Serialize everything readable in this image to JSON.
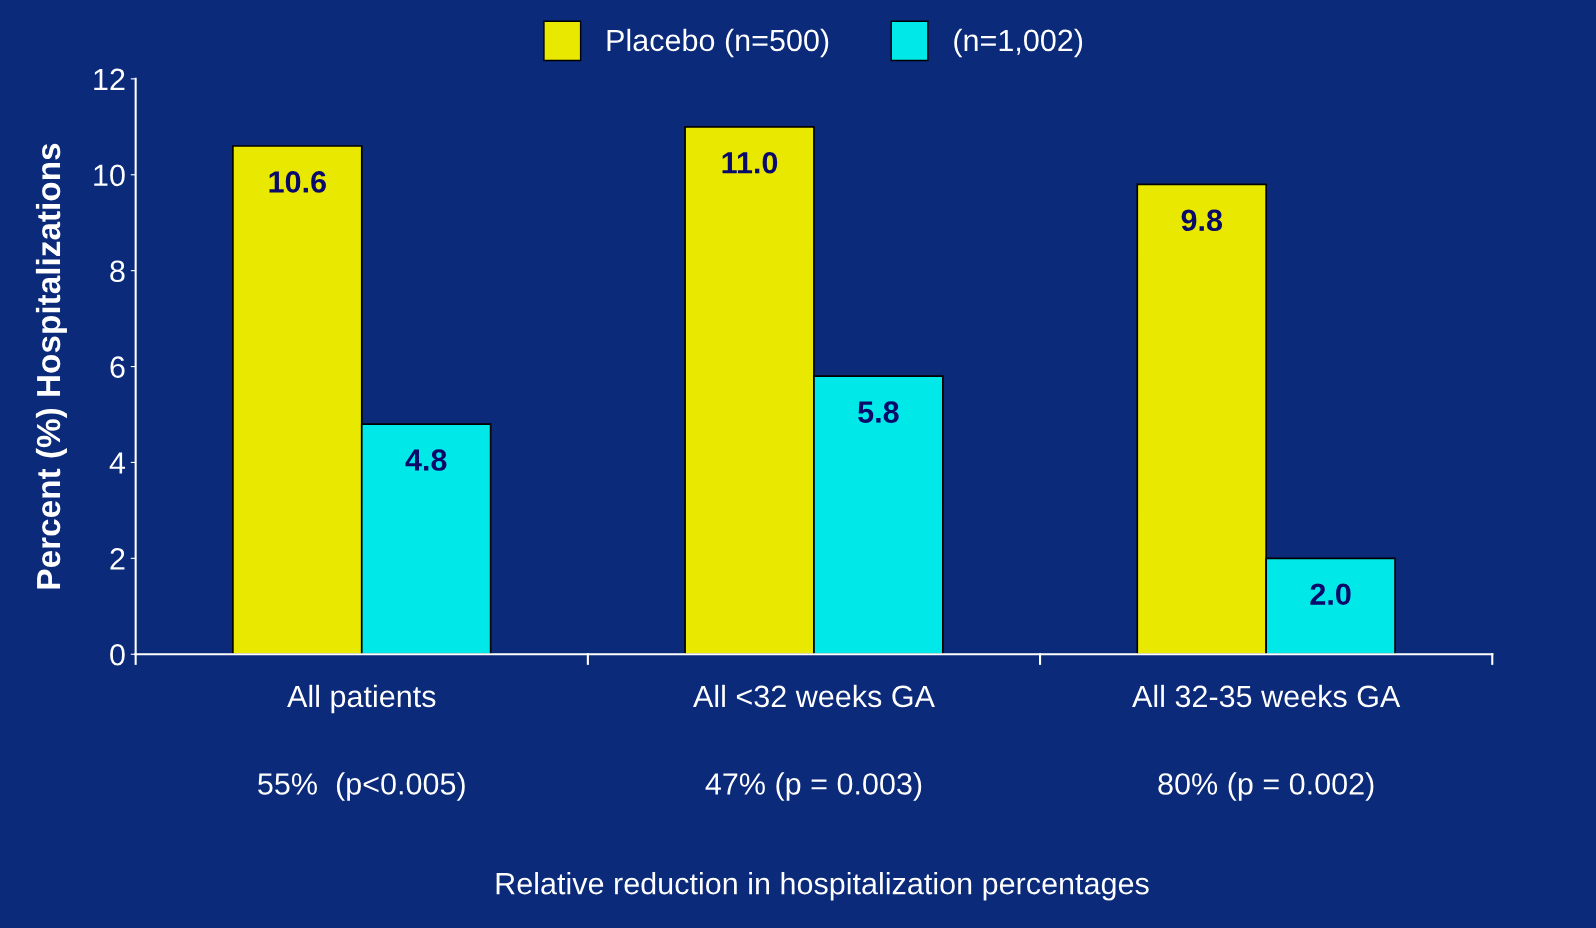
{
  "chart_data": {
    "type": "bar",
    "ylabel": "Percent (%) Hospitalizations",
    "categories": [
      "All patients",
      "All <32 weeks GA",
      "All 32-35 weeks GA"
    ],
    "series": [
      {
        "name": "Placebo (n=500)",
        "color": "#e8e800",
        "values": [
          10.6,
          11.0,
          9.8
        ],
        "value_labels": [
          "10.6",
          "11.0",
          "9.8"
        ]
      },
      {
        "name": "(n=1,002)",
        "color": "#00e8e8",
        "values": [
          4.8,
          5.8,
          2.0
        ],
        "value_labels": [
          "4.8",
          "5.8",
          "2.0"
        ]
      }
    ],
    "ylim": [
      0,
      12
    ],
    "yticks": [
      0,
      2,
      4,
      6,
      8,
      10,
      12
    ],
    "grid": false,
    "legend": "top",
    "annotations": [
      "55%  (p<0.005)",
      "47% (p = 0.003)",
      "80% (p = 0.002)",
      "Relative reduction in hospitalization percentages"
    ]
  }
}
